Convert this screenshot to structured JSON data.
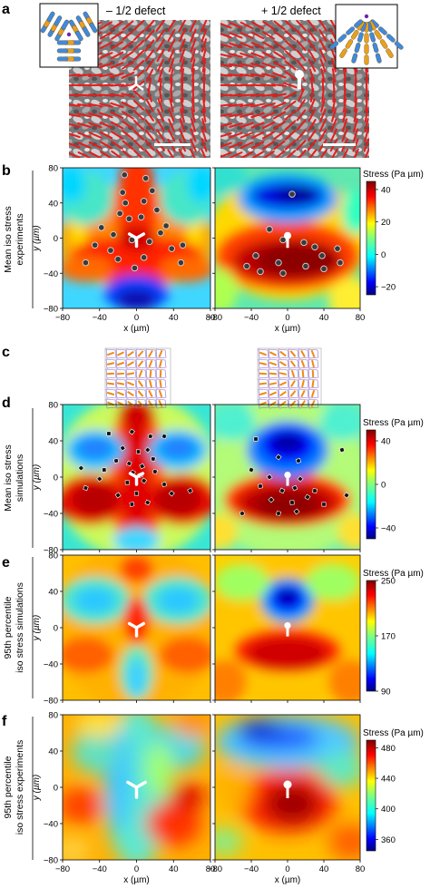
{
  "panel_letters": [
    "a",
    "b",
    "c",
    "d",
    "e",
    "f"
  ],
  "panel_a": {
    "left_title": "– 1/2 defect",
    "right_title": "+ 1/2 defect"
  },
  "row_labels": {
    "b": [
      "Mean iso stress",
      "experiments"
    ],
    "d": [
      "Mean iso stress",
      "simulations"
    ],
    "e": [
      "95th percentile",
      "iso stress simulations"
    ],
    "f": [
      "95th percentile",
      "iso stress experiments"
    ]
  },
  "axes": {
    "xlabel": "x (µm)",
    "ylabel": "y (µm)",
    "ticks": [
      "−80",
      "−40",
      "0",
      "40",
      "80"
    ],
    "yticks": [
      "80",
      "40",
      "0",
      "−40",
      "−80"
    ],
    "b_xticks": [
      "−80",
      "−40",
      "0",
      "40",
      "80"
    ],
    "b_xticks_partial": [
      "−40",
      "0",
      "40",
      "80"
    ]
  },
  "colors": {
    "jet": [
      "#00007f",
      "#0000ff",
      "#007fff",
      "#00ffff",
      "#7fff7f",
      "#ffff00",
      "#ff7f00",
      "#ff0000",
      "#7f0000"
    ]
  },
  "chart_data": [
    {
      "type": "heatmap",
      "panel": "b",
      "title": "",
      "xlabel": "x (µm)",
      "ylabel": "y (µm)",
      "xlim": [
        -80,
        80
      ],
      "ylim": [
        -80,
        80
      ],
      "colorbar": {
        "title": "Stress (Pa µm)",
        "range": [
          -25,
          45
        ],
        "ticks": [
          "40",
          "20",
          "0",
          "−20"
        ],
        "tick_values": [
          40,
          20,
          0,
          -20
        ]
      },
      "left": {
        "defect": "-1/2",
        "marker": "three-arm",
        "points": [
          [
            -13,
            72
          ],
          [
            10,
            68
          ],
          [
            -15,
            52
          ],
          [
            17,
            54
          ],
          [
            -12,
            40
          ],
          [
            8,
            42
          ],
          [
            -18,
            28
          ],
          [
            22,
            32
          ],
          [
            -8,
            22
          ],
          [
            5,
            24
          ],
          [
            -38,
            12
          ],
          [
            32,
            14
          ],
          [
            -25,
            4
          ],
          [
            26,
            6
          ],
          [
            -5,
            -2
          ],
          [
            14,
            -4
          ],
          [
            -45,
            -8
          ],
          [
            -28,
            -14
          ],
          [
            38,
            -12
          ],
          [
            50,
            -8
          ],
          [
            -20,
            -24
          ],
          [
            8,
            -22
          ],
          [
            -55,
            -28
          ],
          [
            48,
            -28
          ],
          [
            -2,
            -34
          ]
        ]
      },
      "right": {
        "defect": "+1/2",
        "marker": "comet",
        "points": [
          [
            5,
            50
          ],
          [
            -20,
            10
          ],
          [
            -5,
            -2
          ],
          [
            18,
            -5
          ],
          [
            30,
            -10
          ],
          [
            -35,
            -20
          ],
          [
            -10,
            -28
          ],
          [
            38,
            -20
          ],
          [
            55,
            -12
          ],
          [
            -30,
            -38
          ],
          [
            -5,
            -40
          ],
          [
            20,
            -32
          ],
          [
            40,
            -35
          ],
          [
            -45,
            -32
          ],
          [
            58,
            -28
          ]
        ]
      }
    },
    {
      "type": "heatmap",
      "panel": "d",
      "title": "",
      "xlabel": "",
      "ylabel": "y (µm)",
      "xlim": [
        -80,
        80
      ],
      "ylim": [
        -80,
        80
      ],
      "colorbar": {
        "title": "Stress (Pa µm)",
        "range": [
          -50,
          50
        ],
        "ticks": [
          "40",
          "0",
          "−40"
        ],
        "tick_values": [
          40,
          0,
          -40
        ]
      },
      "left": {
        "defect": "-1/2",
        "points": [
          [
            -30,
            48
          ],
          [
            -5,
            50
          ],
          [
            15,
            45
          ],
          [
            30,
            45
          ],
          [
            -15,
            32
          ],
          [
            2,
            28
          ],
          [
            12,
            30
          ],
          [
            -22,
            18
          ],
          [
            -8,
            15
          ],
          [
            6,
            12
          ],
          [
            18,
            20
          ],
          [
            -60,
            10
          ],
          [
            -35,
            8
          ],
          [
            -4,
            5
          ],
          [
            4,
            2
          ],
          [
            20,
            6
          ],
          [
            -40,
            -2
          ],
          [
            -10,
            -6
          ],
          [
            8,
            -4
          ],
          [
            30,
            -8
          ],
          [
            -55,
            -12
          ],
          [
            -20,
            -20
          ],
          [
            0,
            -18
          ],
          [
            38,
            -18
          ],
          [
            -5,
            -30
          ],
          [
            12,
            -28
          ],
          [
            58,
            -15
          ]
        ]
      },
      "right": {
        "defect": "+1/2",
        "points": [
          [
            -35,
            42
          ],
          [
            -10,
            22
          ],
          [
            12,
            18
          ],
          [
            -40,
            8
          ],
          [
            -20,
            0
          ],
          [
            0,
            2
          ],
          [
            14,
            -2
          ],
          [
            -30,
            -10
          ],
          [
            -6,
            -15
          ],
          [
            8,
            -12
          ],
          [
            30,
            -15
          ],
          [
            -18,
            -25
          ],
          [
            5,
            -28
          ],
          [
            22,
            -22
          ],
          [
            -50,
            -40
          ],
          [
            -10,
            -40
          ],
          [
            10,
            -38
          ],
          [
            40,
            -30
          ],
          [
            65,
            -20
          ],
          [
            60,
            30
          ]
        ]
      }
    },
    {
      "type": "heatmap",
      "panel": "e",
      "title": "",
      "xlabel": "",
      "ylabel": "y (µm)",
      "xlim": [
        -80,
        80
      ],
      "ylim": [
        -80,
        80
      ],
      "colorbar": {
        "title": "Stress (Pa µm)",
        "range": [
          90,
          250
        ],
        "ticks": [
          "250",
          "170",
          "90"
        ],
        "tick_values": [
          250,
          170,
          90
        ]
      }
    },
    {
      "type": "heatmap",
      "panel": "f",
      "title": "",
      "xlabel": "x (µm)",
      "ylabel": "y (µm)",
      "xlim": [
        -80,
        80
      ],
      "ylim": [
        -80,
        80
      ],
      "colorbar": {
        "title": "Stress (Pa µm)",
        "range": [
          345,
          490
        ],
        "ticks": [
          "480",
          "440",
          "400",
          "360"
        ],
        "tick_values": [
          480,
          440,
          400,
          360
        ]
      }
    }
  ]
}
